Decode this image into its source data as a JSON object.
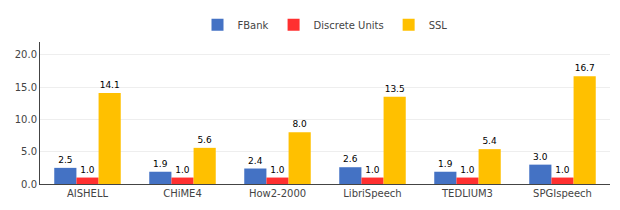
{
  "chart_data": {
    "type": "bar",
    "categories": [
      "AISHELL",
      "CHiME4",
      "How2-2000",
      "LibriSpeech",
      "TEDLIUM3",
      "SPGIspeech"
    ],
    "series": [
      {
        "name": "FBank",
        "color": "#4472C4",
        "values": [
          2.5,
          1.9,
          2.4,
          2.6,
          1.9,
          3.0
        ],
        "value_labels": [
          "2.5",
          "1.9",
          "2.4",
          "2.6",
          "1.9",
          "3.0"
        ]
      },
      {
        "name": "Discrete Units",
        "color": "#FF3030",
        "values": [
          1.0,
          1.0,
          1.0,
          1.0,
          1.0,
          1.0
        ],
        "value_labels": [
          "1.0",
          "1.0",
          "1.0",
          "1.0",
          "1.0",
          "1.0"
        ]
      },
      {
        "name": "SSL",
        "color": "#FFC000",
        "values": [
          14.1,
          5.6,
          8.0,
          13.5,
          5.4,
          16.7
        ],
        "value_labels": [
          "14.1",
          "5.6",
          "8.0",
          "13.5",
          "5.4",
          "16.7"
        ]
      }
    ],
    "ylim": [
      0,
      22
    ],
    "yticks": [
      {
        "value": 0,
        "label": "0.0"
      },
      {
        "value": 5,
        "label": "5.0"
      },
      {
        "value": 10,
        "label": "10.0"
      },
      {
        "value": 15,
        "label": "15.0"
      },
      {
        "value": 20,
        "label": "20.0"
      }
    ],
    "grid": true,
    "legend": "top",
    "data_labels": true
  }
}
